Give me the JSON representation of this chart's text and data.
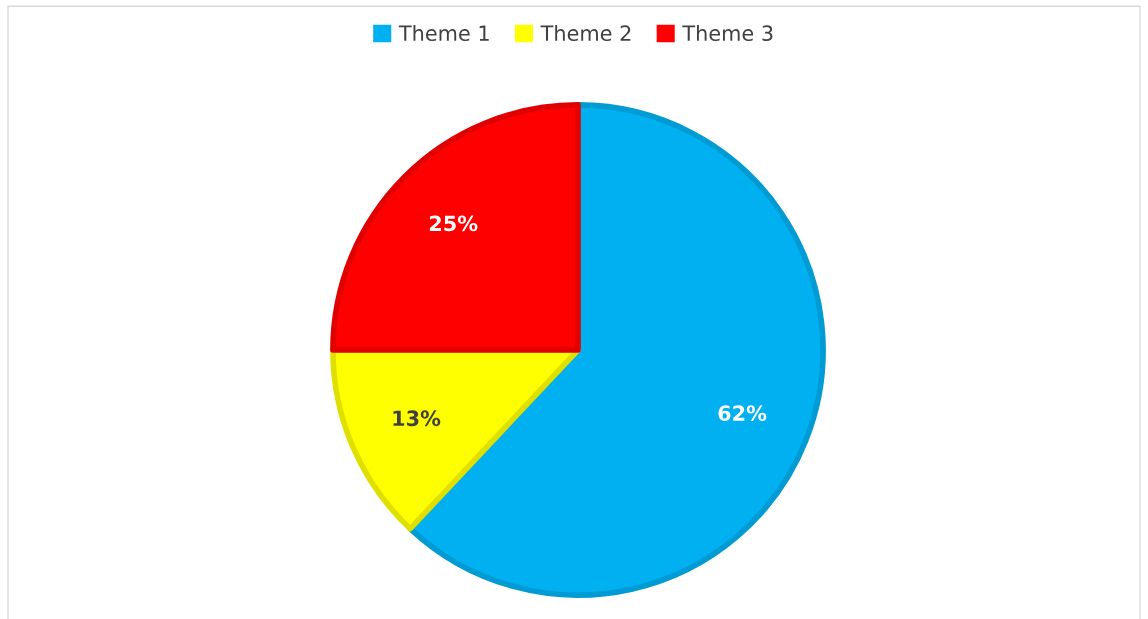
{
  "chart_data": {
    "type": "pie",
    "categories": [
      "Theme 1",
      "Theme 2",
      "Theme 3"
    ],
    "values": [
      62,
      13,
      25
    ],
    "value_labels": [
      "62%",
      "13%",
      "25%"
    ],
    "colors": [
      "#00b0f0",
      "#ffff00",
      "#ff0000"
    ],
    "legend": "top"
  }
}
